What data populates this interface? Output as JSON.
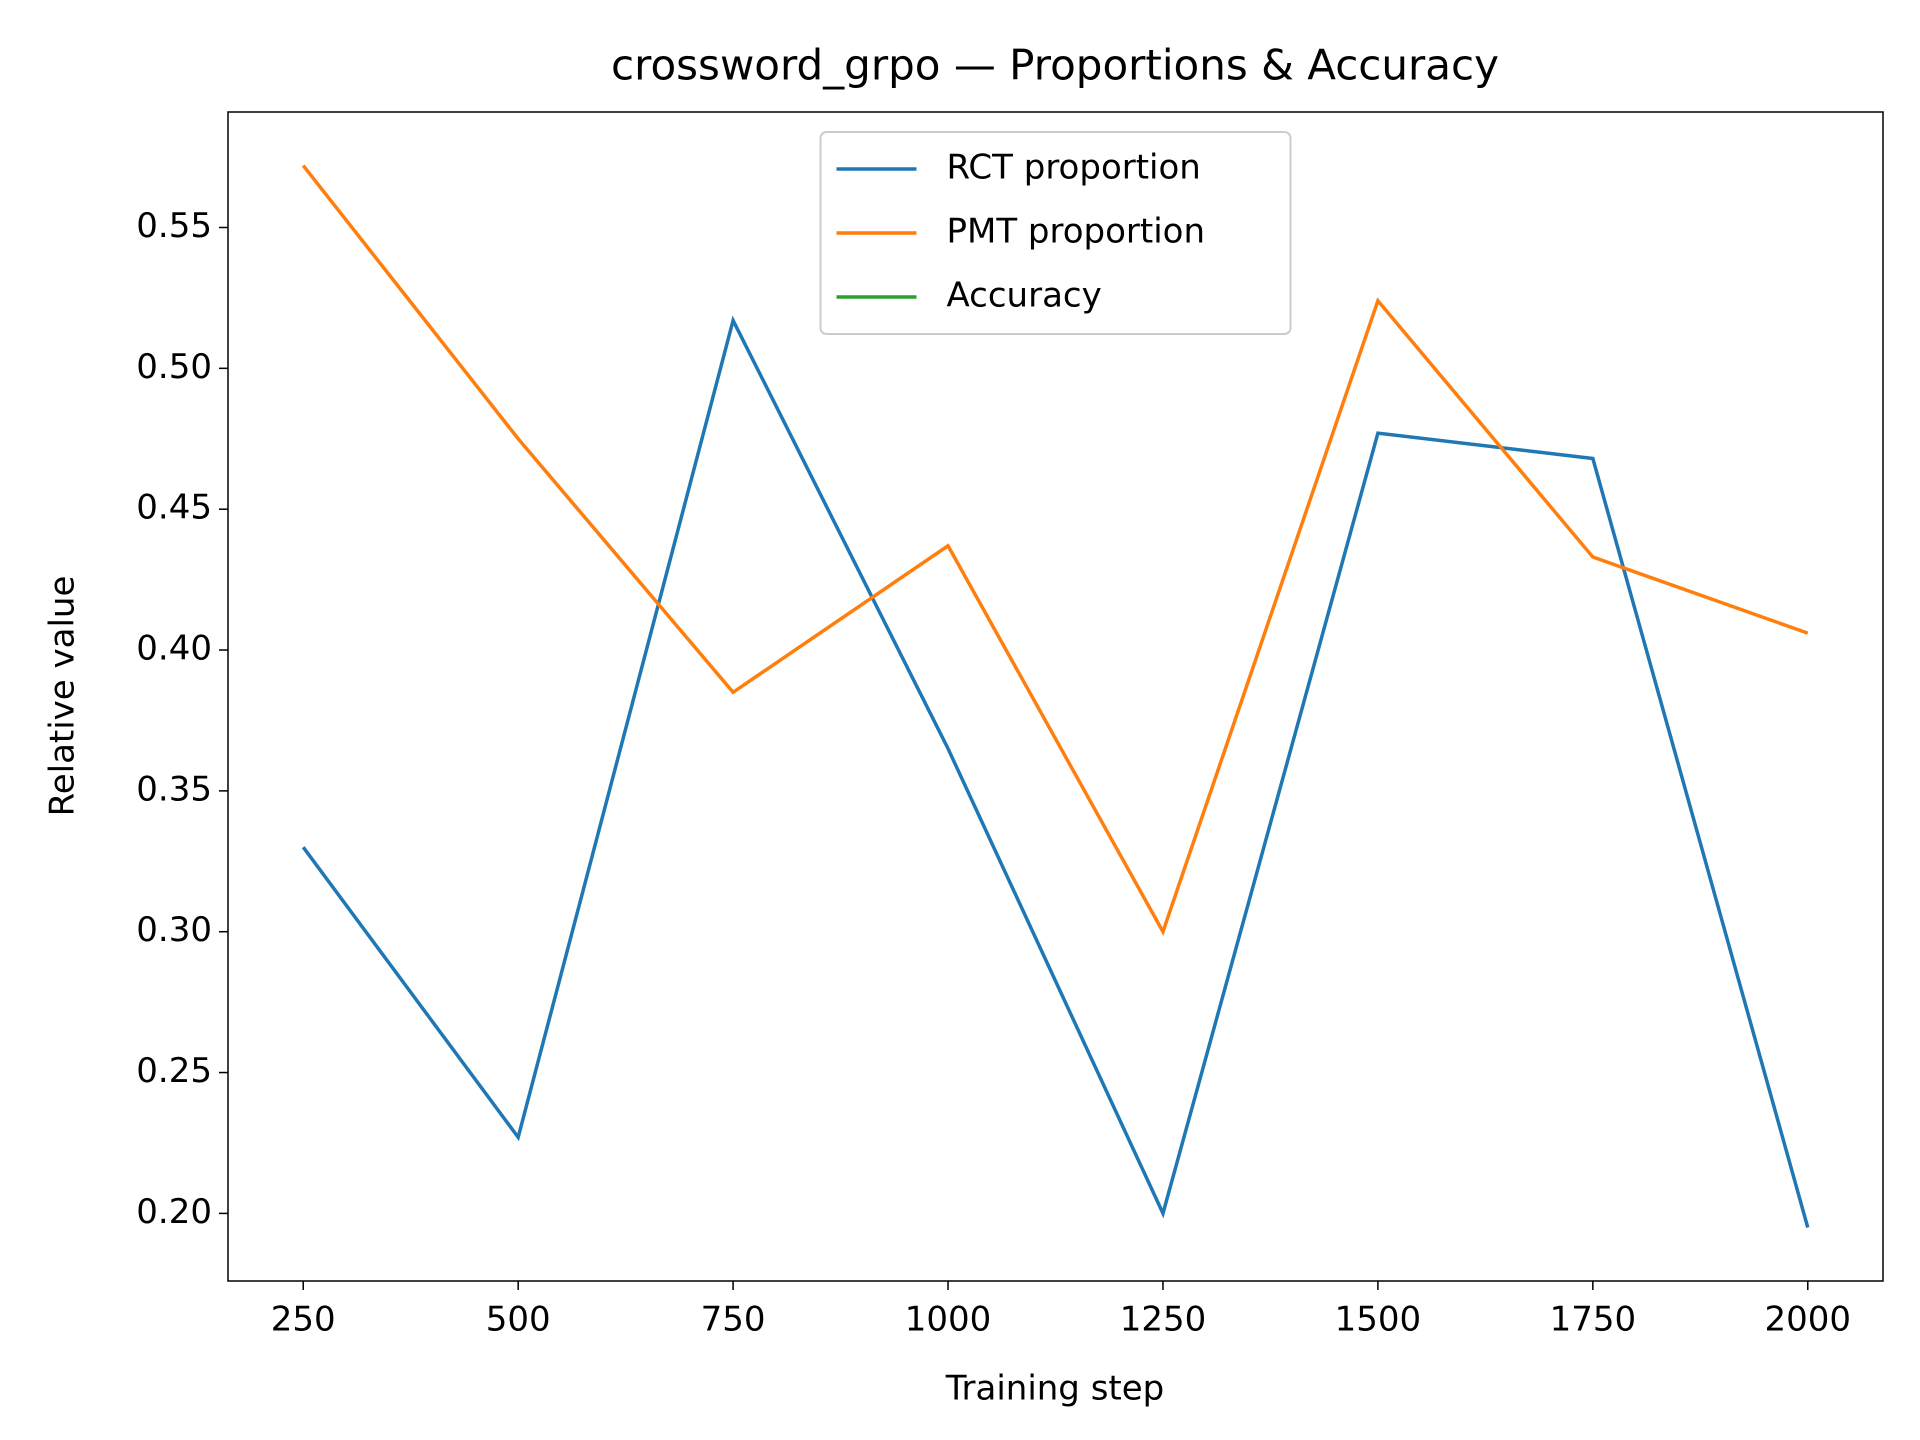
{
  "chart_data": {
    "type": "line",
    "title": "crossword_grpo — Proportions & Accuracy",
    "x_label": "Training step",
    "y_label": "Relative value",
    "x": [
      250,
      500,
      750,
      1000,
      1250,
      1500,
      1750,
      2000
    ],
    "series": [
      {
        "name": "RCT proportion",
        "color": "#1f77b4",
        "values": [
          0.33,
          0.227,
          0.517,
          0.365,
          0.2,
          0.477,
          0.468,
          0.195
        ]
      },
      {
        "name": "PMT proportion",
        "color": "#ff7f0e",
        "values": [
          0.572,
          0.475,
          0.385,
          0.437,
          0.3,
          0.524,
          0.433,
          0.406
        ]
      },
      {
        "name": "Accuracy",
        "color": "#2ca02c",
        "values": [
          null,
          null,
          null,
          null,
          null,
          null,
          null,
          null
        ]
      }
    ],
    "xlim": [
      162.5,
      2087.5
    ],
    "xticks": [
      250,
      500,
      750,
      1000,
      1250,
      1500,
      1750,
      2000
    ],
    "ylim": [
      0.176,
      0.591
    ],
    "yticks": [
      {
        "value": 0.2,
        "label": "0.20"
      },
      {
        "value": 0.25,
        "label": "0.25"
      },
      {
        "value": 0.3,
        "label": "0.30"
      },
      {
        "value": 0.35,
        "label": "0.35"
      },
      {
        "value": 0.4,
        "label": "0.40"
      },
      {
        "value": 0.45,
        "label": "0.45"
      },
      {
        "value": 0.5,
        "label": "0.50"
      },
      {
        "value": 0.55,
        "label": "0.55"
      }
    ],
    "legend": "upper center",
    "grid": false
  }
}
